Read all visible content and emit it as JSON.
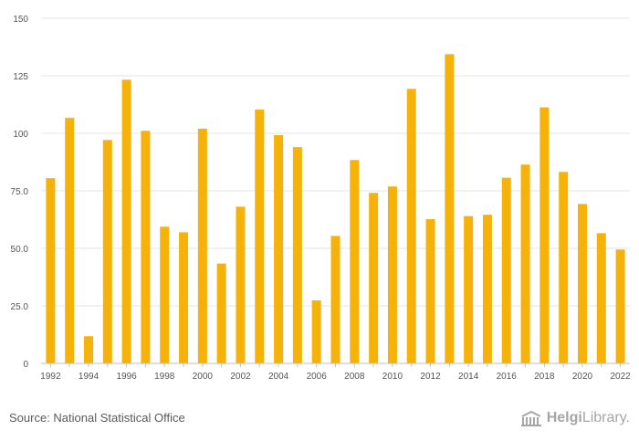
{
  "chart_data": {
    "type": "bar",
    "categories": [
      "1992",
      "1993",
      "1994",
      "1995",
      "1996",
      "1997",
      "1998",
      "1999",
      "2000",
      "2001",
      "2002",
      "2003",
      "2004",
      "2005",
      "2006",
      "2007",
      "2008",
      "2009",
      "2010",
      "2011",
      "2012",
      "2013",
      "2014",
      "2015",
      "2016",
      "2017",
      "2018",
      "2019",
      "2020",
      "2021",
      "2022"
    ],
    "x_tick_labels": [
      "1992",
      "1994",
      "1996",
      "1998",
      "2000",
      "2002",
      "2004",
      "2006",
      "2008",
      "2010",
      "2012",
      "2014",
      "2016",
      "2018",
      "2020",
      "2022"
    ],
    "values": [
      80.5,
      106.7,
      11.8,
      97.1,
      123.3,
      101.1,
      59.4,
      57.0,
      102.0,
      43.4,
      68.1,
      110.3,
      99.2,
      94.0,
      27.4,
      55.4,
      88.4,
      74.1,
      76.9,
      119.3,
      62.7,
      134.4,
      64.0,
      64.6,
      80.7,
      86.4,
      111.3,
      83.2,
      69.3,
      56.6,
      49.5
    ],
    "y_ticks": [
      "0",
      "25.0",
      "50.0",
      "75.0",
      "100",
      "125",
      "150"
    ],
    "ylim": [
      0,
      150
    ],
    "bar_color": "#f7b20a",
    "grid": true
  },
  "footer": {
    "source": "Source: National Statistical Office",
    "logo_part1": "Helgi",
    "logo_part2": "Library."
  }
}
